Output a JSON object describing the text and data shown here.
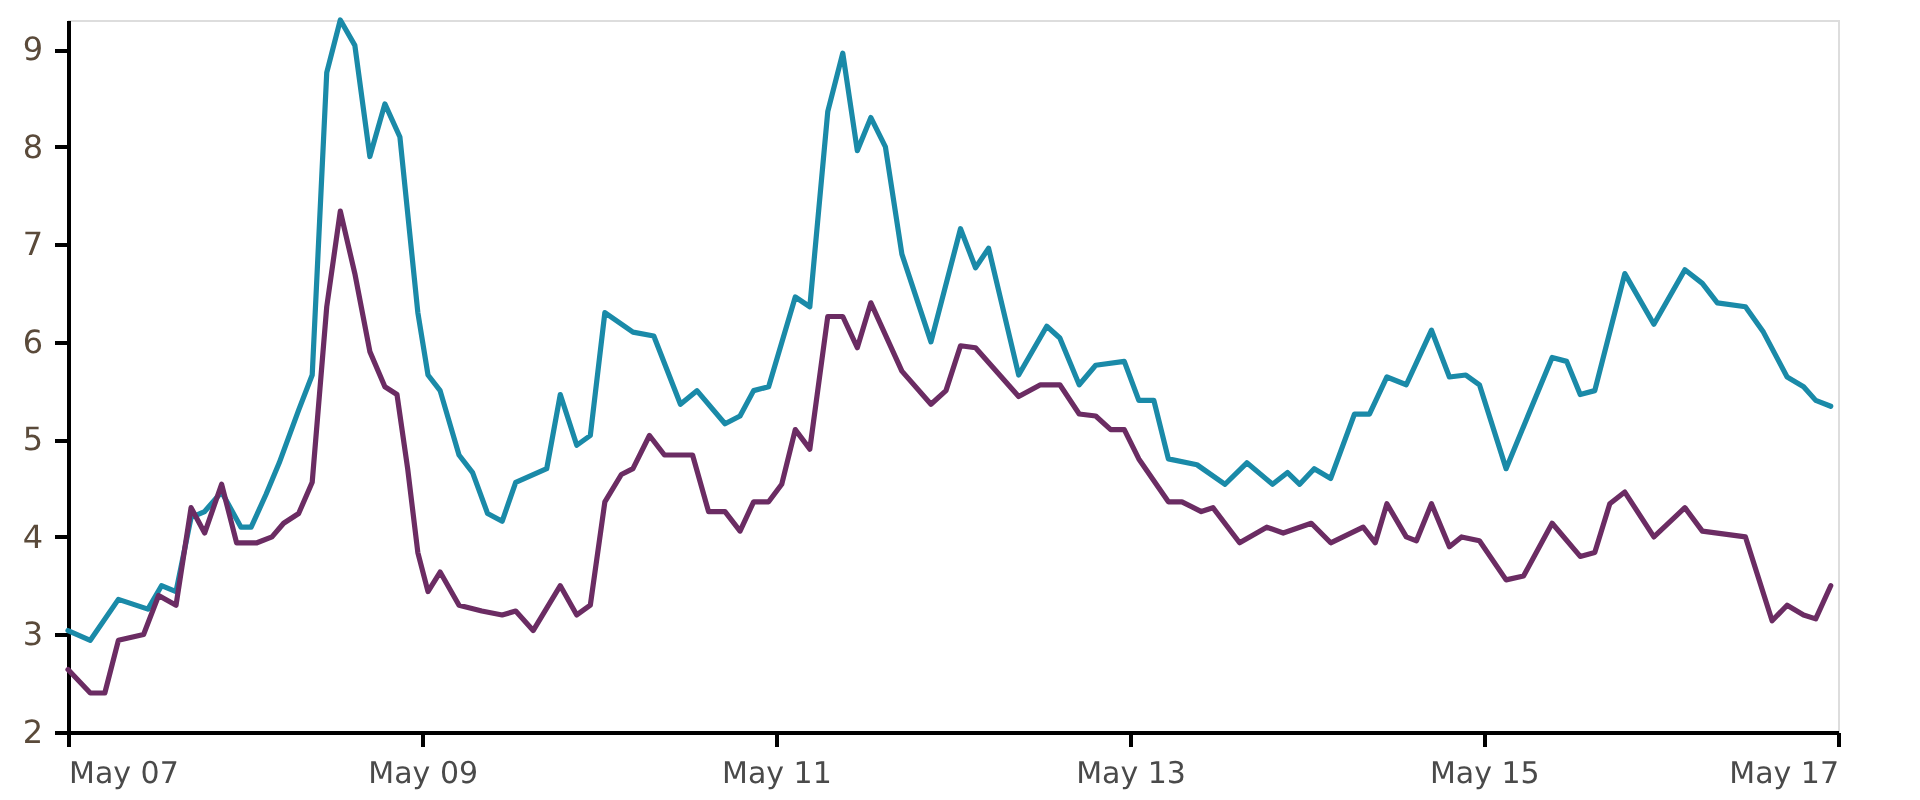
{
  "chart_data": {
    "type": "line",
    "xlim": [
      "2007-05-01",
      "2017-05-01"
    ],
    "xticks": [
      {
        "value": "2007-05-01",
        "label": "May 07"
      },
      {
        "value": "2009-05-01",
        "label": "May 09"
      },
      {
        "value": "2011-05-01",
        "label": "May 11"
      },
      {
        "value": "2013-05-01",
        "label": "May 13"
      },
      {
        "value": "2015-05-01",
        "label": "May 15"
      },
      {
        "value": "2017-05-01",
        "label": "May 17"
      }
    ],
    "ylim": [
      2,
      9.3
    ],
    "yticks": [
      2,
      3,
      4,
      5,
      6,
      7,
      8,
      9
    ],
    "grid": false,
    "legend": false,
    "marker": "none",
    "line_style": "solid",
    "series": [
      {
        "color": "#1a8aa8",
        "x": [
          "2007-05-01",
          "2007-06-16",
          "2007-08-13",
          "2007-10-13",
          "2007-11-10",
          "2007-12-10",
          "2008-01-10",
          "2008-02-07",
          "2008-03-13",
          "2008-04-22",
          "2008-05-13",
          "2008-06-13",
          "2008-07-10",
          "2008-08-19",
          "2008-09-16",
          "2008-10-16",
          "2008-11-13",
          "2008-12-13",
          "2009-01-13",
          "2009-02-13",
          "2009-03-16",
          "2009-04-22",
          "2009-05-13",
          "2009-06-07",
          "2009-07-16",
          "2009-08-13",
          "2009-09-13",
          "2009-10-13",
          "2009-11-10",
          "2010-01-13",
          "2010-02-10",
          "2010-03-16",
          "2010-04-13",
          "2010-05-13",
          "2010-07-10",
          "2010-08-22",
          "2010-10-16",
          "2010-11-19",
          "2011-01-16",
          "2011-02-16",
          "2011-03-16",
          "2011-04-16",
          "2011-06-10",
          "2011-07-10",
          "2011-08-16",
          "2011-09-16",
          "2011-10-16",
          "2011-11-13",
          "2011-12-13",
          "2012-01-16",
          "2012-03-16",
          "2012-05-16",
          "2012-06-16",
          "2012-07-13",
          "2012-09-13",
          "2012-11-10",
          "2012-12-07",
          "2013-01-16",
          "2013-02-19",
          "2013-04-19",
          "2013-05-19",
          "2013-06-19",
          "2013-07-19",
          "2013-09-16",
          "2013-11-13",
          "2013-12-28",
          "2014-02-19",
          "2014-03-22",
          "2014-04-16",
          "2014-05-16",
          "2014-06-19",
          "2014-08-07",
          "2014-09-07",
          "2014-10-13",
          "2014-11-22",
          "2015-01-13",
          "2015-02-19",
          "2015-03-25",
          "2015-04-22",
          "2015-06-16",
          "2015-09-19",
          "2015-10-19",
          "2015-11-16",
          "2015-12-16",
          "2016-02-16",
          "2016-04-16",
          "2016-06-19",
          "2016-07-25",
          "2016-08-25",
          "2016-10-22",
          "2016-11-28",
          "2017-01-16",
          "2017-02-19",
          "2017-03-16",
          "2017-04-16"
        ],
        "values": [
          3.04,
          2.94,
          3.36,
          3.26,
          3.5,
          3.44,
          4.2,
          4.26,
          4.46,
          4.1,
          4.1,
          4.44,
          4.76,
          5.3,
          5.66,
          8.76,
          9.3,
          9.04,
          7.9,
          8.44,
          8.1,
          6.3,
          5.66,
          5.5,
          4.84,
          4.66,
          4.24,
          4.16,
          4.56,
          4.7,
          5.46,
          4.94,
          5.04,
          6.3,
          6.1,
          6.06,
          5.36,
          5.5,
          5.16,
          5.24,
          5.5,
          5.54,
          6.46,
          6.36,
          8.36,
          8.96,
          7.96,
          8.3,
          8.0,
          6.9,
          6.0,
          7.16,
          6.76,
          6.96,
          5.66,
          6.16,
          6.04,
          5.56,
          5.76,
          5.8,
          5.4,
          5.4,
          4.8,
          4.74,
          4.54,
          4.76,
          4.54,
          4.66,
          4.54,
          4.7,
          4.6,
          5.26,
          5.26,
          5.64,
          5.56,
          6.12,
          5.64,
          5.66,
          5.56,
          4.7,
          5.84,
          5.8,
          5.46,
          5.5,
          6.7,
          6.18,
          6.74,
          6.6,
          6.4,
          6.36,
          6.1,
          5.64,
          5.54,
          5.4,
          5.34
        ]
      },
      {
        "color": "#6b2c63",
        "x": [
          "2007-05-01",
          "2007-06-16",
          "2007-07-16",
          "2007-08-13",
          "2007-10-04",
          "2007-11-04",
          "2007-12-10",
          "2008-01-10",
          "2008-02-07",
          "2008-03-13",
          "2008-04-13",
          "2008-05-25",
          "2008-06-25",
          "2008-07-19",
          "2008-08-19",
          "2008-09-16",
          "2008-10-16",
          "2008-11-13",
          "2008-12-13",
          "2009-01-13",
          "2009-02-13",
          "2009-03-10",
          "2009-04-01",
          "2009-04-22",
          "2009-05-13",
          "2009-06-07",
          "2009-07-16",
          "2009-09-01",
          "2009-10-13",
          "2009-11-10",
          "2009-12-16",
          "2010-02-10",
          "2010-03-16",
          "2010-04-13",
          "2010-05-13",
          "2010-06-16",
          "2010-07-10",
          "2010-08-13",
          "2010-09-13",
          "2010-11-10",
          "2010-12-13",
          "2011-01-16",
          "2011-02-16",
          "2011-03-16",
          "2011-04-16",
          "2011-05-13",
          "2011-06-10",
          "2011-07-10",
          "2011-08-16",
          "2011-09-16",
          "2011-10-16",
          "2011-11-13",
          "2012-01-16",
          "2012-03-16",
          "2012-04-16",
          "2012-05-16",
          "2012-06-16",
          "2012-09-13",
          "2012-10-28",
          "2012-12-07",
          "2013-01-16",
          "2013-02-19",
          "2013-03-22",
          "2013-04-19",
          "2013-05-19",
          "2013-07-19",
          "2013-08-16",
          "2013-09-25",
          "2013-10-19",
          "2013-12-13",
          "2014-02-07",
          "2014-03-13",
          "2014-05-10",
          "2014-06-19",
          "2014-08-25",
          "2014-09-19",
          "2014-10-13",
          "2014-11-22",
          "2014-12-13",
          "2015-01-13",
          "2015-02-19",
          "2015-03-16",
          "2015-04-22",
          "2015-06-16",
          "2015-07-22",
          "2015-09-19",
          "2015-11-16",
          "2015-12-16",
          "2016-01-16",
          "2016-02-16",
          "2016-04-16",
          "2016-06-19",
          "2016-07-25",
          "2016-10-22",
          "2016-12-16",
          "2017-01-16",
          "2017-02-19",
          "2017-03-16",
          "2017-04-16"
        ],
        "values": [
          2.64,
          2.4,
          2.4,
          2.94,
          3.0,
          3.4,
          3.3,
          4.3,
          4.04,
          4.54,
          3.94,
          3.94,
          4.0,
          4.14,
          4.24,
          4.56,
          6.36,
          7.34,
          6.7,
          5.9,
          5.54,
          5.46,
          4.7,
          3.84,
          3.44,
          3.64,
          3.3,
          3.24,
          3.2,
          3.24,
          3.04,
          3.5,
          3.2,
          3.3,
          4.36,
          4.64,
          4.7,
          5.04,
          4.84,
          4.84,
          4.26,
          4.26,
          4.06,
          4.36,
          4.36,
          4.54,
          5.1,
          4.9,
          6.26,
          6.26,
          5.94,
          6.4,
          5.7,
          5.36,
          5.5,
          5.96,
          5.94,
          5.44,
          5.56,
          5.56,
          5.26,
          5.24,
          5.1,
          5.1,
          4.8,
          4.36,
          4.36,
          4.26,
          4.3,
          3.94,
          4.1,
          4.04,
          4.14,
          3.94,
          4.1,
          3.94,
          4.34,
          4.0,
          3.96,
          4.34,
          3.9,
          4.0,
          3.96,
          3.56,
          3.6,
          4.14,
          3.8,
          3.84,
          4.34,
          4.46,
          4.0,
          4.3,
          4.06,
          4.0,
          3.14,
          3.3,
          3.2,
          3.16,
          3.5
        ]
      }
    ]
  }
}
